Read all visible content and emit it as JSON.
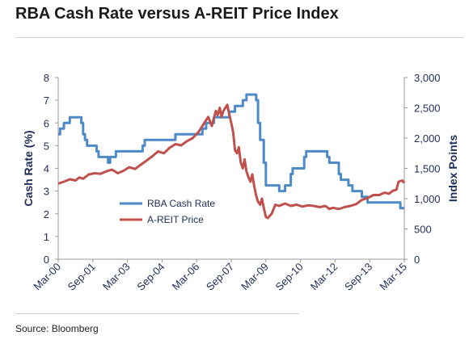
{
  "title": "RBA Cash Rate versus A-REIT Price Index",
  "source": "Source: Bloomberg",
  "colors": {
    "cash": "#4e8ac8",
    "reit": "#c0504d",
    "axis": "#1f2d5a"
  },
  "chart_data": {
    "type": "line",
    "title": "RBA Cash Rate versus A-REIT Price Index",
    "ylabel_left": "Cash Rate (%)",
    "ylabel_right": "Index Points",
    "ylim_left": [
      0,
      8
    ],
    "ylim_right": [
      0,
      3000
    ],
    "yticks_left": [
      "0",
      "1",
      "2",
      "3",
      "4",
      "5",
      "6",
      "7",
      "8"
    ],
    "yticks_right": [
      "0",
      "500",
      "1,000",
      "1,500",
      "2,000",
      "2,500",
      "3,000"
    ],
    "x_range": [
      2000.17,
      2015.17
    ],
    "x_ticks": [
      {
        "label": "Mar-00",
        "x": 2000.17
      },
      {
        "label": "Sep-01",
        "x": 2001.67
      },
      {
        "label": "Mar-03",
        "x": 2003.17
      },
      {
        "label": "Sep-04",
        "x": 2004.67
      },
      {
        "label": "Mar-06",
        "x": 2006.17
      },
      {
        "label": "Sep-07",
        "x": 2007.67
      },
      {
        "label": "Mar-09",
        "x": 2009.17
      },
      {
        "label": "Sep-10",
        "x": 2010.67
      },
      {
        "label": "Mar-12",
        "x": 2012.17
      },
      {
        "label": "Sep-13",
        "x": 2013.67
      },
      {
        "label": "Mar-15",
        "x": 2015.17
      }
    ],
    "grid": false,
    "legend_position": "center-left",
    "series": [
      {
        "name": "RBA Cash Rate",
        "axis": "left",
        "x": [
          2000.17,
          2000.25,
          2000.42,
          2000.58,
          2000.67,
          2001.08,
          2001.17,
          2001.25,
          2001.33,
          2001.42,
          2001.75,
          2001.83,
          2001.92,
          2002.33,
          2002.42,
          2002.67,
          2003.25,
          2003.75,
          2003.83,
          2003.92,
          2004.25,
          2005.17,
          2005.25,
          2006.25,
          2006.42,
          2006.58,
          2006.83,
          2006.92,
          2007.5,
          2007.58,
          2007.83,
          2007.92,
          2008.17,
          2008.33,
          2008.67,
          2008.75,
          2008.83,
          2008.92,
          2009.08,
          2009.17,
          2009.67,
          2009.75,
          2009.92,
          2010.0,
          2010.25,
          2010.33,
          2010.83,
          2010.92,
          2011.75,
          2011.83,
          2011.92,
          2012.0,
          2012.33,
          2012.42,
          2012.75,
          2012.92,
          2013.33,
          2013.58,
          2014.83,
          2015.0,
          2015.17
        ],
        "values": [
          5.5,
          5.75,
          6.0,
          6.0,
          6.25,
          6.25,
          6.0,
          5.5,
          5.25,
          5.0,
          5.0,
          4.75,
          4.5,
          4.25,
          4.5,
          4.75,
          4.75,
          4.75,
          5.0,
          5.25,
          5.25,
          5.25,
          5.5,
          5.5,
          5.75,
          6.0,
          6.0,
          6.25,
          6.25,
          6.5,
          6.75,
          6.75,
          7.0,
          7.25,
          7.25,
          7.0,
          6.0,
          5.25,
          4.25,
          3.25,
          3.25,
          3.0,
          3.0,
          3.25,
          3.75,
          4.0,
          4.5,
          4.75,
          4.75,
          4.5,
          4.25,
          4.25,
          3.75,
          3.5,
          3.25,
          3.0,
          2.75,
          2.5,
          2.5,
          2.25,
          2.25
        ]
      },
      {
        "name": "A-REIT Price",
        "axis": "right",
        "x": [
          2000.17,
          2000.42,
          2000.67,
          2000.92,
          2001.08,
          2001.25,
          2001.5,
          2001.75,
          2002.0,
          2002.25,
          2002.5,
          2002.75,
          2003.0,
          2003.25,
          2003.5,
          2003.75,
          2004.0,
          2004.25,
          2004.5,
          2004.75,
          2005.0,
          2005.25,
          2005.5,
          2005.75,
          2006.0,
          2006.25,
          2006.5,
          2006.67,
          2006.83,
          2007.0,
          2007.08,
          2007.17,
          2007.25,
          2007.33,
          2007.5,
          2007.58,
          2007.67,
          2007.75,
          2007.83,
          2007.92,
          2008.0,
          2008.08,
          2008.17,
          2008.25,
          2008.33,
          2008.42,
          2008.5,
          2008.58,
          2008.67,
          2008.75,
          2008.83,
          2008.92,
          2009.0,
          2009.08,
          2009.17,
          2009.25,
          2009.42,
          2009.58,
          2009.75,
          2010.0,
          2010.25,
          2010.5,
          2010.75,
          2011.0,
          2011.25,
          2011.5,
          2011.75,
          2011.92,
          2012.08,
          2012.33,
          2012.58,
          2012.83,
          2013.08,
          2013.33,
          2013.58,
          2013.83,
          2014.08,
          2014.33,
          2014.5,
          2014.67,
          2014.83,
          2014.92,
          2015.08,
          2015.17
        ],
        "values": [
          1250,
          1280,
          1320,
          1300,
          1350,
          1330,
          1400,
          1420,
          1410,
          1450,
          1480,
          1420,
          1460,
          1520,
          1490,
          1560,
          1630,
          1700,
          1780,
          1750,
          1840,
          1900,
          1880,
          1950,
          2000,
          2100,
          2250,
          2350,
          2200,
          2450,
          2380,
          2500,
          2350,
          2450,
          2550,
          2400,
          2250,
          2100,
          1800,
          1750,
          1850,
          1600,
          1500,
          1650,
          1450,
          1350,
          1280,
          1400,
          1200,
          1050,
          950,
          900,
          1000,
          850,
          700,
          680,
          750,
          900,
          880,
          920,
          880,
          900,
          870,
          890,
          880,
          860,
          880,
          830,
          850,
          830,
          860,
          880,
          910,
          980,
          1010,
          1060,
          1060,
          1100,
          1080,
          1130,
          1150,
          1280,
          1300,
          1260
        ]
      }
    ]
  }
}
